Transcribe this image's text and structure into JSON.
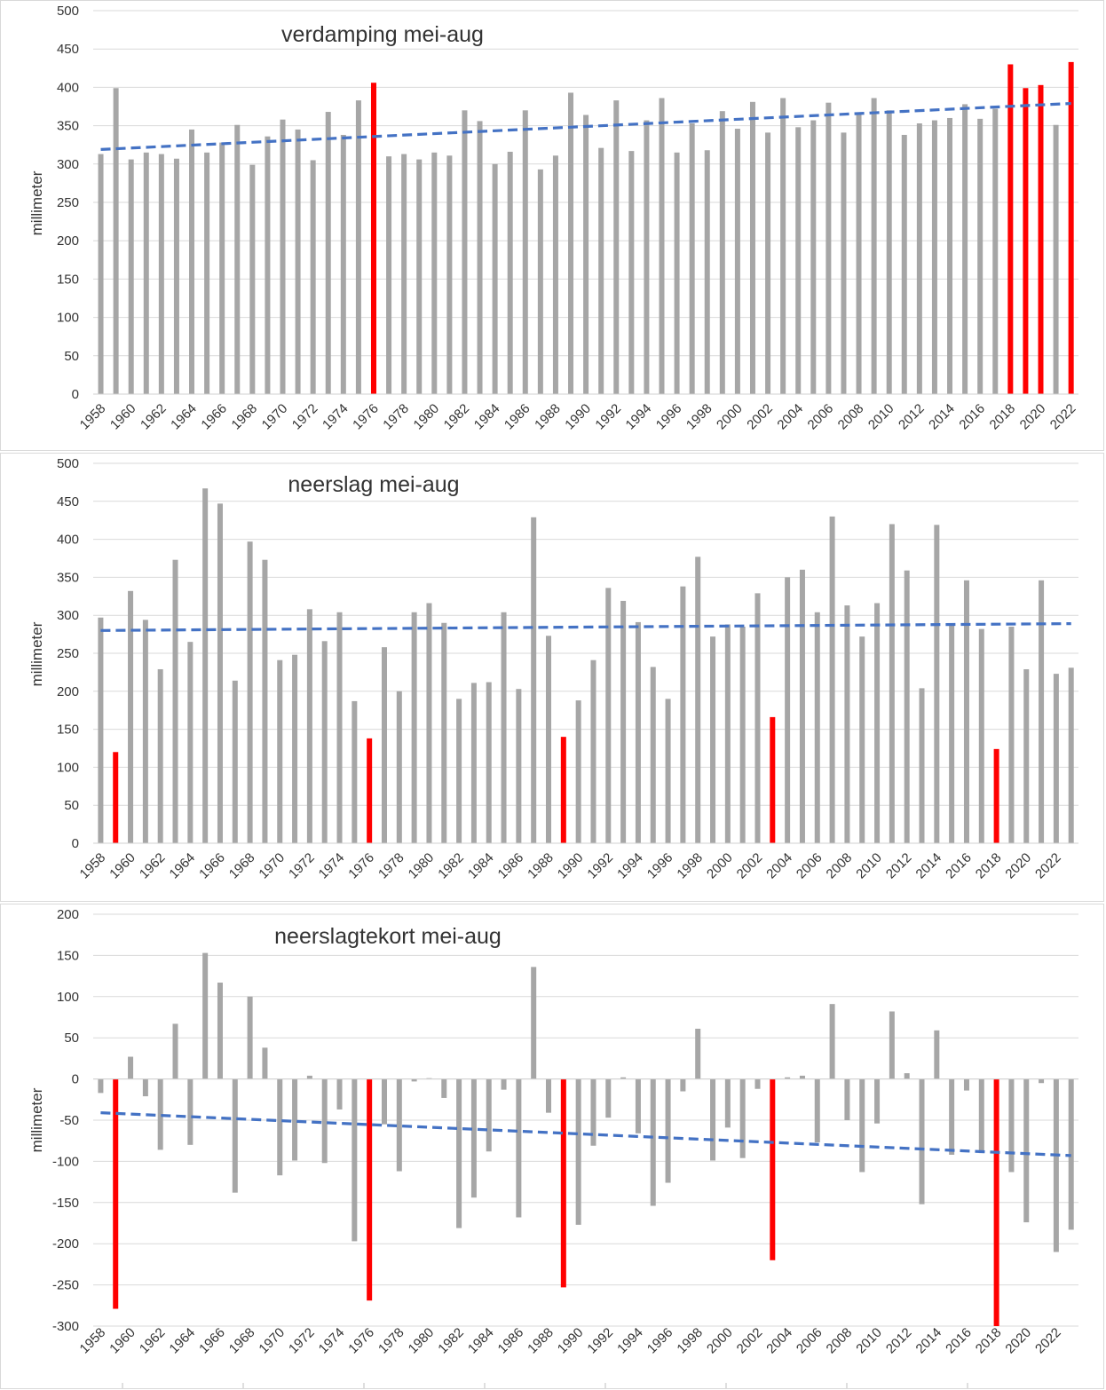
{
  "colors": {
    "bar": "#a6a6a6",
    "highlight": "#ff0000",
    "trend": "#4472c4",
    "grid": "#d9d9d9"
  },
  "chart_data": [
    {
      "type": "bar",
      "title": "verdamping mei-aug",
      "ylabel": "millimeter",
      "ylim": [
        0,
        500
      ],
      "yticks": [
        "0",
        "50",
        "100",
        "150",
        "200",
        "250",
        "300",
        "350",
        "400",
        "450",
        "500"
      ],
      "xtick_labels": [
        "1958",
        "1960",
        "1962",
        "1964",
        "1966",
        "1968",
        "1970",
        "1972",
        "1974",
        "1976",
        "1978",
        "1980",
        "1982",
        "1984",
        "1986",
        "1988",
        "1990",
        "1992",
        "1994",
        "1996",
        "1998",
        "2000",
        "2002",
        "2004",
        "2006",
        "2008",
        "2010",
        "2012",
        "2014",
        "2016",
        "2018",
        "2020",
        "2022"
      ],
      "x": [
        1958,
        1959,
        1960,
        1961,
        1962,
        1963,
        1964,
        1965,
        1966,
        1967,
        1968,
        1969,
        1970,
        1971,
        1972,
        1973,
        1974,
        1975,
        1976,
        1977,
        1978,
        1979,
        1980,
        1981,
        1982,
        1983,
        1984,
        1985,
        1986,
        1987,
        1988,
        1989,
        1990,
        1991,
        1992,
        1993,
        1994,
        1995,
        1996,
        1997,
        1998,
        1999,
        2000,
        2001,
        2002,
        2003,
        2004,
        2005,
        2006,
        2007,
        2008,
        2009,
        2010,
        2011,
        2012,
        2013,
        2014,
        2015,
        2016,
        2017,
        2018,
        2019,
        2020,
        2021,
        2022
      ],
      "values": [
        313,
        399,
        306,
        315,
        313,
        307,
        345,
        315,
        328,
        351,
        299,
        336,
        358,
        345,
        305,
        368,
        338,
        383,
        406,
        310,
        313,
        306,
        315,
        311,
        370,
        356,
        300,
        316,
        370,
        293,
        311,
        393,
        364,
        321,
        383,
        317,
        357,
        386,
        315,
        353,
        318,
        369,
        346,
        381,
        341,
        386,
        348,
        357,
        380,
        341,
        365,
        386,
        370,
        338,
        353,
        357,
        360,
        378,
        359,
        372,
        430,
        399,
        403,
        351,
        433
      ],
      "highlight": [
        1976,
        2018,
        2019,
        2020,
        2022
      ],
      "trend": [
        319,
        379
      ],
      "grid": true
    },
    {
      "type": "bar",
      "title": "neerslag mei-aug",
      "ylabel": "millimeter",
      "ylim": [
        0,
        500
      ],
      "yticks": [
        "0",
        "50",
        "100",
        "150",
        "200",
        "250",
        "300",
        "350",
        "400",
        "450",
        "500"
      ],
      "xtick_labels": [
        "1958",
        "1960",
        "1962",
        "1964",
        "1966",
        "1968",
        "1970",
        "1972",
        "1974",
        "1976",
        "1978",
        "1980",
        "1982",
        "1984",
        "1986",
        "1988",
        "1990",
        "1992",
        "1994",
        "1996",
        "1998",
        "2000",
        "2002",
        "2004",
        "2006",
        "2008",
        "2010",
        "2012",
        "2014",
        "2016",
        "2018",
        "2020",
        "2022"
      ],
      "x": [
        1958,
        1959,
        1960,
        1961,
        1962,
        1963,
        1964,
        1965,
        1966,
        1967,
        1968,
        1969,
        1970,
        1971,
        1972,
        1973,
        1974,
        1975,
        1976,
        1977,
        1978,
        1979,
        1980,
        1981,
        1982,
        1983,
        1984,
        1985,
        1986,
        1987,
        1988,
        1989,
        1990,
        1991,
        1992,
        1993,
        1994,
        1995,
        1996,
        1997,
        1998,
        1999,
        2000,
        2001,
        2002,
        2003,
        2004,
        2005,
        2006,
        2007,
        2008,
        2009,
        2010,
        2011,
        2012,
        2013,
        2014,
        2015,
        2016,
        2017,
        2018,
        2019,
        2020,
        2021,
        2022,
        2023
      ],
      "values": [
        297,
        120,
        332,
        294,
        229,
        373,
        265,
        467,
        447,
        214,
        397,
        373,
        241,
        248,
        308,
        266,
        304,
        187,
        138,
        258,
        200,
        304,
        316,
        290,
        190,
        211,
        212,
        304,
        203,
        429,
        273,
        140,
        188,
        241,
        336,
        319,
        291,
        232,
        190,
        338,
        377,
        272,
        288,
        285,
        329,
        166,
        350,
        360,
        304,
        430,
        313,
        272,
        316,
        420,
        359,
        204,
        419,
        287,
        346,
        282,
        124,
        285,
        229,
        346,
        223,
        231
      ],
      "highlight": [
        1959,
        1976,
        1989,
        2003,
        2018
      ],
      "trend": [
        280,
        289
      ],
      "grid": true
    },
    {
      "type": "bar",
      "title": "neerslagtekort mei-aug",
      "ylabel": "millimeter",
      "ylim": [
        -300,
        200
      ],
      "yticks": [
        "-300",
        "-250",
        "-200",
        "-150",
        "-100",
        "-50",
        "0",
        "50",
        "100",
        "150",
        "200"
      ],
      "xtick_labels": [
        "1958",
        "1960",
        "1962",
        "1964",
        "1966",
        "1968",
        "1970",
        "1972",
        "1974",
        "1976",
        "1978",
        "1980",
        "1982",
        "1984",
        "1986",
        "1988",
        "1990",
        "1992",
        "1994",
        "1996",
        "1998",
        "2000",
        "2002",
        "2004",
        "2006",
        "2008",
        "2010",
        "2012",
        "2014",
        "2016",
        "2018",
        "2020",
        "2022"
      ],
      "x": [
        1958,
        1959,
        1960,
        1961,
        1962,
        1963,
        1964,
        1965,
        1966,
        1967,
        1968,
        1969,
        1970,
        1971,
        1972,
        1973,
        1974,
        1975,
        1976,
        1977,
        1978,
        1979,
        1980,
        1981,
        1982,
        1983,
        1984,
        1985,
        1986,
        1987,
        1988,
        1989,
        1990,
        1991,
        1992,
        1993,
        1994,
        1995,
        1996,
        1997,
        1998,
        1999,
        2000,
        2001,
        2002,
        2003,
        2004,
        2005,
        2006,
        2007,
        2008,
        2009,
        2010,
        2011,
        2012,
        2013,
        2014,
        2015,
        2016,
        2017,
        2018,
        2019,
        2020,
        2021,
        2022,
        2023
      ],
      "values": [
        -17,
        -279,
        27,
        -21,
        -86,
        67,
        -80,
        153,
        117,
        -138,
        100,
        38,
        -117,
        -99,
        4,
        -102,
        -37,
        -197,
        -269,
        -55,
        -112,
        -3,
        1,
        -23,
        -181,
        -144,
        -88,
        -13,
        -168,
        136,
        -41,
        -253,
        -177,
        -81,
        -47,
        2,
        -66,
        -154,
        -126,
        -15,
        61,
        -99,
        -59,
        -96,
        -12,
        -220,
        2,
        4,
        -77,
        91,
        -50,
        -113,
        -54,
        82,
        7,
        -152,
        59,
        -92,
        -14,
        -90,
        -303,
        -113,
        -174,
        -5,
        -210,
        -183
      ],
      "highlight": [
        1959,
        1976,
        1989,
        2003,
        2018
      ],
      "trend": [
        -41,
        -93
      ],
      "grid": true
    }
  ]
}
